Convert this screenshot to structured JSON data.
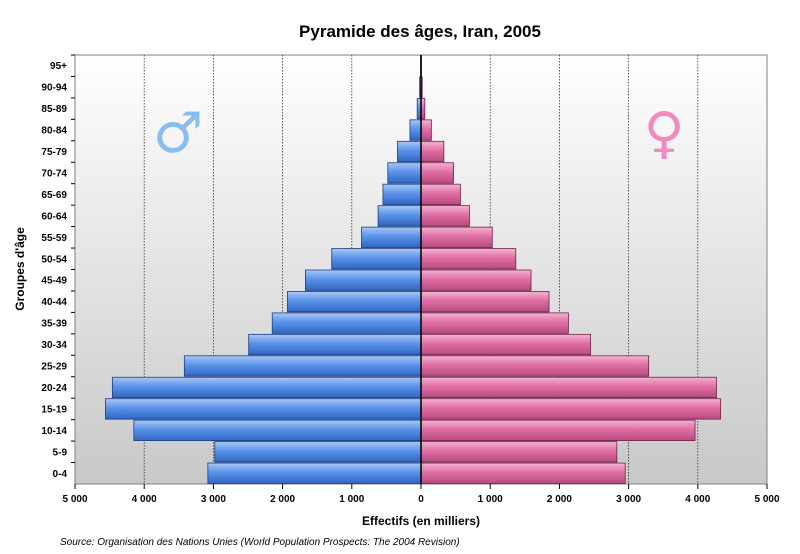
{
  "chart_data": {
    "type": "bar",
    "orientation": "horizontal",
    "subtype": "population-pyramid",
    "title": "Pyramide des âges, Iran, 2005",
    "xlabel": "Effectifs (en milliers)",
    "ylabel": "Groupes d'âge",
    "xlim": [
      -5000,
      5000
    ],
    "xticks": [
      -5000,
      -4000,
      -3000,
      -2000,
      -1000,
      0,
      1000,
      2000,
      3000,
      4000,
      5000
    ],
    "xtick_labels": [
      "5 000",
      "4 000",
      "3 000",
      "2 000",
      "1 000",
      "0",
      "1 000",
      "2 000",
      "3 000",
      "4 000",
      "5 000"
    ],
    "categories": [
      "0-4",
      "5-9",
      "10-14",
      "15-19",
      "20-24",
      "25-29",
      "30-34",
      "35-39",
      "40-44",
      "45-49",
      "50-54",
      "55-59",
      "60-64",
      "65-69",
      "70-74",
      "75-79",
      "80-84",
      "85-89",
      "90-94",
      "95+"
    ],
    "series": [
      {
        "symbol": "♂",
        "color": "#4a86e0",
        "values": [
          3080,
          2980,
          4150,
          4560,
          4460,
          3420,
          2490,
          2150,
          1930,
          1670,
          1290,
          860,
          620,
          550,
          480,
          340,
          160,
          55,
          20,
          6
        ]
      },
      {
        "symbol": "♀",
        "color": "#d9669c",
        "values": [
          2950,
          2830,
          3960,
          4330,
          4270,
          3290,
          2450,
          2130,
          1850,
          1590,
          1370,
          1030,
          700,
          570,
          470,
          330,
          150,
          55,
          18,
          5
        ]
      }
    ],
    "grid": "vertical-dotted",
    "source": "Source: Organisation des Nations Unies (World Population Prospects: The 2004 Revision)"
  }
}
